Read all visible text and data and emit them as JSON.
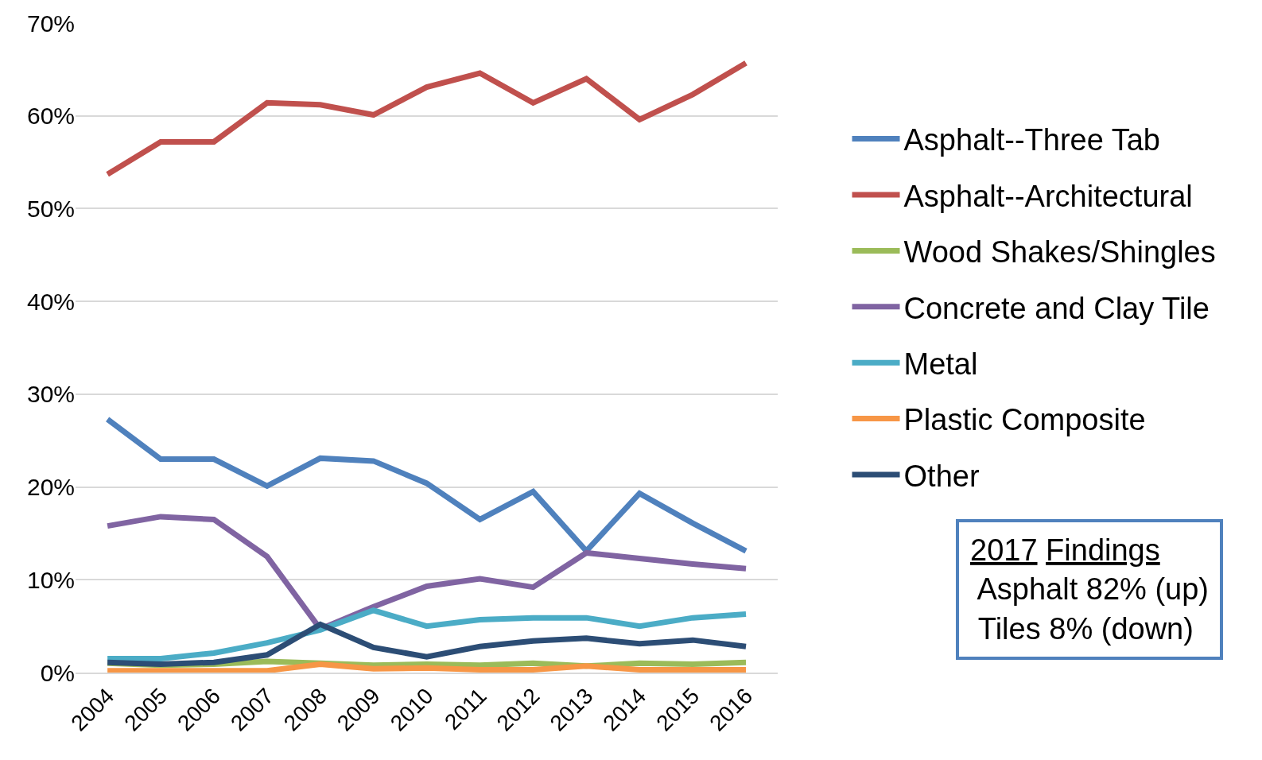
{
  "chart_data": {
    "type": "line",
    "categories": [
      "2004",
      "2005",
      "2006",
      "2007",
      "2008",
      "2009",
      "2010",
      "2011",
      "2012",
      "2013",
      "2014",
      "2015",
      "2016"
    ],
    "series": [
      {
        "name": "Asphalt--Three Tab",
        "color": "#4f81bd",
        "values": [
          27.3,
          23.0,
          23.0,
          20.1,
          23.1,
          22.8,
          20.4,
          16.5,
          19.5,
          13.1,
          19.3,
          16.1,
          13.1
        ]
      },
      {
        "name": "Asphalt--Architectural",
        "color": "#c0504d",
        "values": [
          53.7,
          57.2,
          57.2,
          61.4,
          61.2,
          60.1,
          63.1,
          64.6,
          61.4,
          64.0,
          59.6,
          62.3,
          65.7
        ]
      },
      {
        "name": "Wood Shakes/Shingles",
        "color": "#9bbb59",
        "values": [
          1.0,
          0.8,
          0.9,
          1.2,
          1.0,
          0.8,
          0.9,
          0.8,
          1.0,
          0.7,
          1.0,
          0.9,
          1.1
        ]
      },
      {
        "name": "Concrete and Clay Tile",
        "color": "#8064a2",
        "values": [
          15.8,
          16.8,
          16.5,
          12.5,
          4.7,
          7.1,
          9.3,
          10.1,
          9.2,
          12.9,
          12.3,
          11.7,
          11.2
        ]
      },
      {
        "name": "Metal",
        "color": "#4bacc6",
        "values": [
          1.5,
          1.5,
          2.1,
          3.2,
          4.6,
          6.7,
          5.0,
          5.7,
          5.9,
          5.9,
          5.0,
          5.9,
          6.3
        ]
      },
      {
        "name": "Plastic Composite",
        "color": "#f79646",
        "values": [
          0.2,
          0.2,
          0.2,
          0.2,
          0.9,
          0.4,
          0.5,
          0.3,
          0.3,
          0.7,
          0.3,
          0.3,
          0.3
        ]
      },
      {
        "name": "Other",
        "color": "#2c4d75",
        "values": [
          1.1,
          0.9,
          1.1,
          1.9,
          5.2,
          2.7,
          1.7,
          2.8,
          3.4,
          3.7,
          3.1,
          3.5,
          2.8
        ]
      }
    ],
    "ylim": [
      0,
      70
    ],
    "yticks": [
      {
        "value": 0,
        "label": "0%"
      },
      {
        "value": 10,
        "label": "10%"
      },
      {
        "value": 20,
        "label": "20%"
      },
      {
        "value": 30,
        "label": "30%"
      },
      {
        "value": 40,
        "label": "40%"
      },
      {
        "value": 50,
        "label": "50%"
      },
      {
        "value": 60,
        "label": "60%"
      },
      {
        "value": 70,
        "label": "70%"
      }
    ],
    "grid": "y",
    "legend": "right",
    "marker": "none",
    "line_style": "solid",
    "annotations": [
      "2017 Findings",
      "Asphalt 82% (up)",
      "Tiles 8% (down)"
    ]
  }
}
